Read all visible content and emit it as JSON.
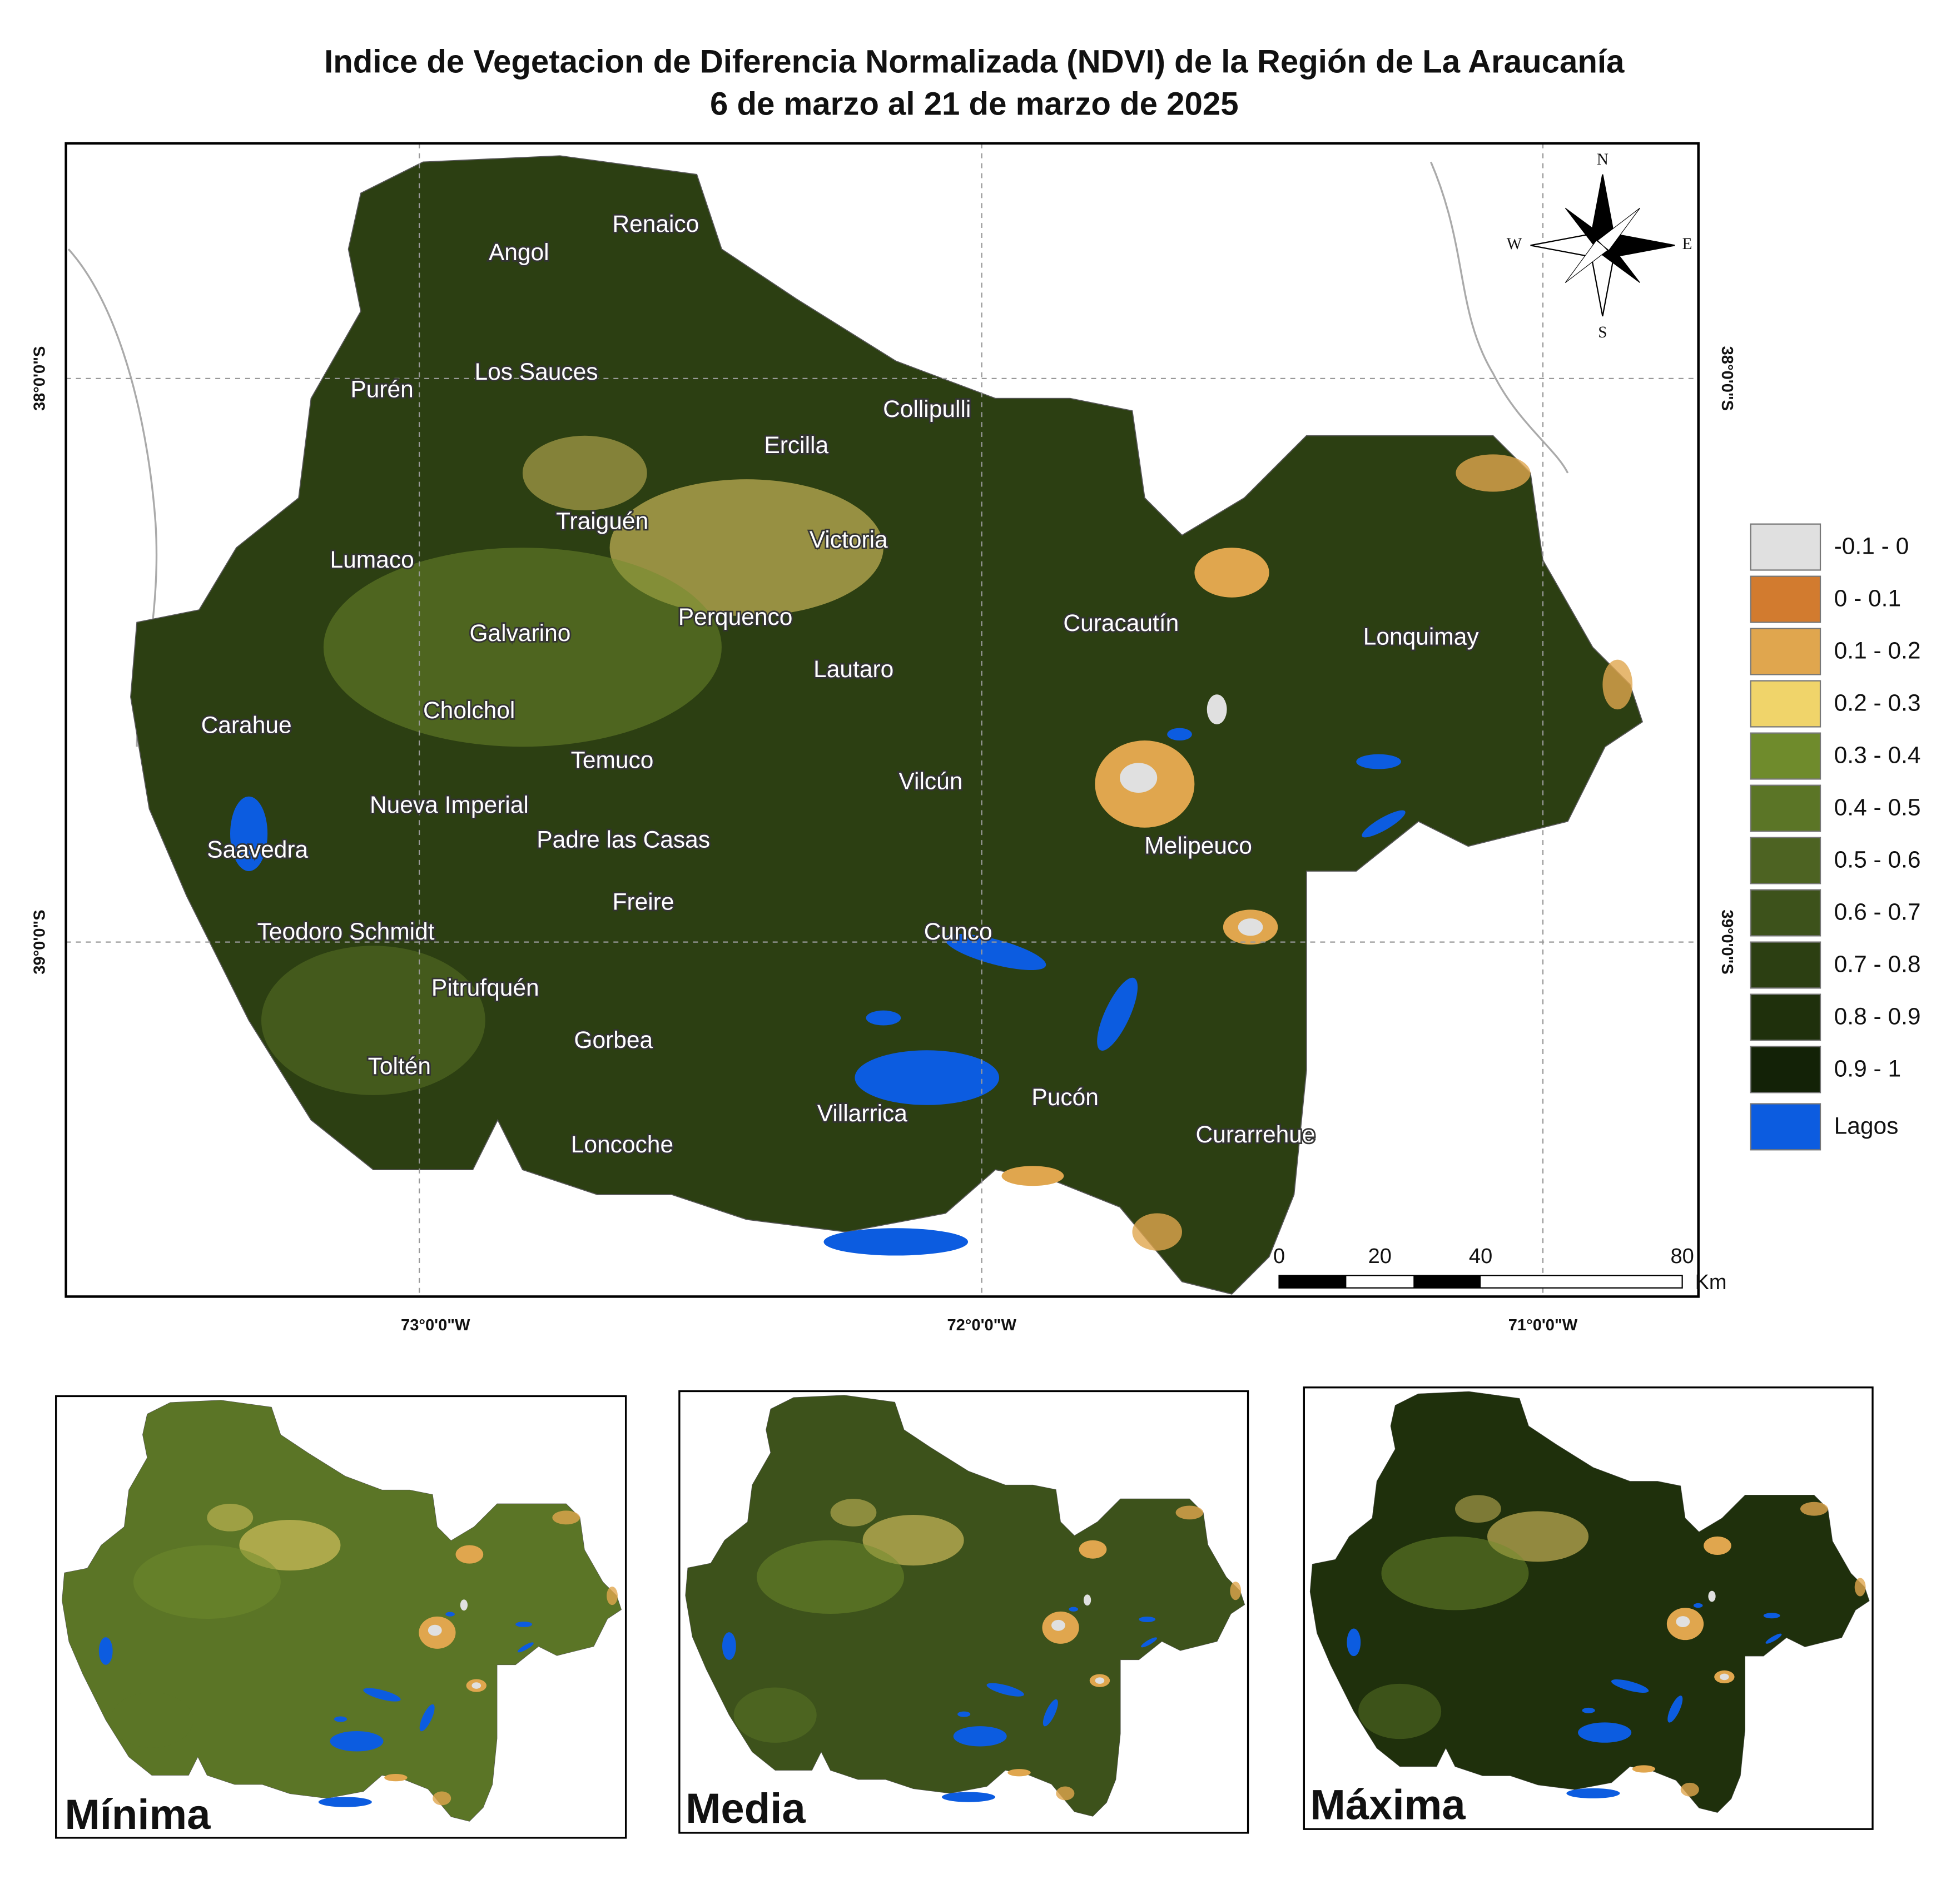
{
  "title": [
    "Indice de Vegetacion de Diferencia Normalizada (NDVI) de la Región de La Araucanía",
    "6 de marzo al 21 de marzo de 2025"
  ],
  "map": {
    "places": [
      "Renaico",
      "Angol",
      "Los Sauces",
      "Purén",
      "Collipulli",
      "Ercilla",
      "Traiguén",
      "Victoria",
      "Lumaco",
      "Curacautín",
      "Perquenco",
      "Galvarino",
      "Lonquimay",
      "Lautaro",
      "Cholchol",
      "Carahue",
      "Temuco",
      "Vilcún",
      "Nueva Imperial",
      "Padre las Casas",
      "Melipeuco",
      "Saavedra",
      "Freire",
      "Teodoro Schmidt",
      "Cunco",
      "Pitrufquén",
      "Gorbea",
      "Toltén",
      "Pucón",
      "Villarrica",
      "Curarrehue",
      "Loncoche"
    ],
    "latitude_labels": [
      "38°0'0\"S",
      "39°0'0\"S"
    ],
    "longitude_labels": [
      "73°0'0\"W",
      "72°0'0\"W",
      "71°0'0\"W"
    ],
    "compass": [
      "N",
      "S",
      "W",
      "E"
    ],
    "scale_bar": {
      "ticks": [
        0,
        20,
        40,
        80
      ],
      "unit": "Km"
    }
  },
  "legend": [
    {
      "label": "-0.1 - 0",
      "color": "#e0e0e0"
    },
    {
      "label": "0 - 0.1",
      "color": "#d27b2f"
    },
    {
      "label": "0.1 - 0.2",
      "color": "#e0a64e"
    },
    {
      "label": "0.2 - 0.3",
      "color": "#f0d46a"
    },
    {
      "label": "0.3 - 0.4",
      "color": "#6f8b2c"
    },
    {
      "label": "0.4 - 0.5",
      "color": "#5b7526"
    },
    {
      "label": "0.5 - 0.6",
      "color": "#4d6322"
    },
    {
      "label": "0.6 - 0.7",
      "color": "#3d521b"
    },
    {
      "label": "0.7 - 0.8",
      "color": "#2c3f12"
    },
    {
      "label": "0.8 - 0.9",
      "color": "#1f300c"
    },
    {
      "label": "0.9 - 1",
      "color": "#132207"
    },
    {
      "label": "Lagos",
      "color": "#0c5ce0"
    }
  ],
  "insets": [
    "Mínima",
    "Media",
    "Máxima"
  ]
}
